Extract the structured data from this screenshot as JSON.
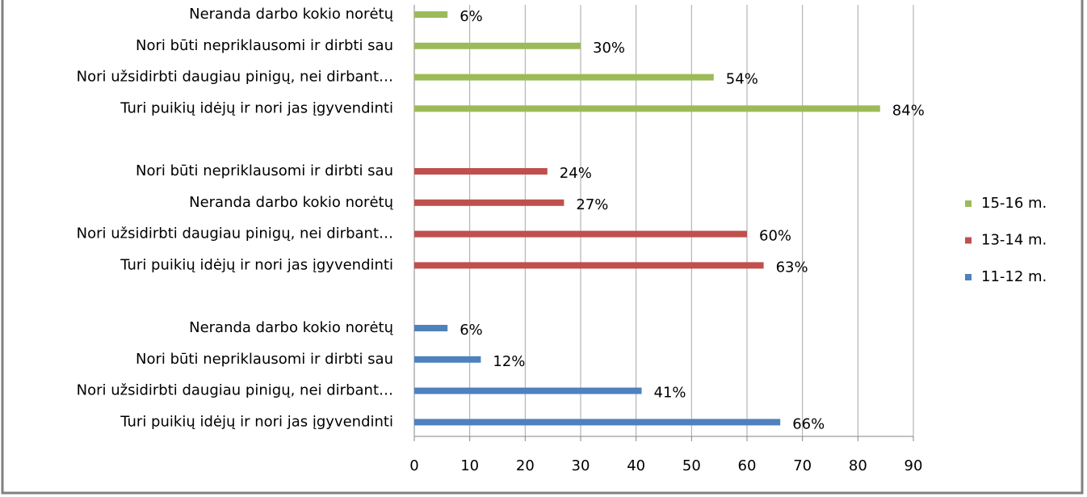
{
  "chart_data": {
    "type": "bar",
    "orientation": "horizontal",
    "series": [
      {
        "name": "15-16 m.",
        "color": "#9bbb59",
        "categories": [
          "Neranda darbo kokio norėtų",
          "Nori būti nepriklausomi ir dirbti sau",
          "Nori užsidirbti daugiau pinigų, nei  dirbant…",
          "Turi puikių idėjų ir nori jas įgyvendinti"
        ],
        "values": [
          6,
          30,
          54,
          84
        ],
        "value_labels": [
          "6%",
          "30%",
          "54%",
          "84%"
        ]
      },
      {
        "name": "13-14 m.",
        "color": "#c0504d",
        "categories": [
          "Nori būti nepriklausomi ir dirbti sau",
          "Neranda darbo kokio norėtų",
          "Nori užsidirbti daugiau pinigų, nei  dirbant…",
          "Turi puikių idėjų ir nori jas įgyvendinti"
        ],
        "values": [
          24,
          27,
          60,
          63
        ],
        "value_labels": [
          "24%",
          "27%",
          "60%",
          "63%"
        ]
      },
      {
        "name": "11-12 m.",
        "color": "#4f81bd",
        "categories": [
          "Neranda darbo kokio norėtų",
          "Nori būti nepriklausomi ir dirbti sau",
          "Nori užsidirbti daugiau pinigų, nei  dirbant…",
          "Turi puikių idėjų ir nori jas įgyvendinti"
        ],
        "values": [
          6,
          12,
          41,
          66
        ],
        "value_labels": [
          "6%",
          "12%",
          "41%",
          "66%"
        ]
      }
    ],
    "xlim": [
      0,
      90
    ],
    "xticks": [
      0,
      10,
      20,
      30,
      40,
      50,
      60,
      70,
      80,
      90
    ],
    "grid": true,
    "legend": "right"
  }
}
